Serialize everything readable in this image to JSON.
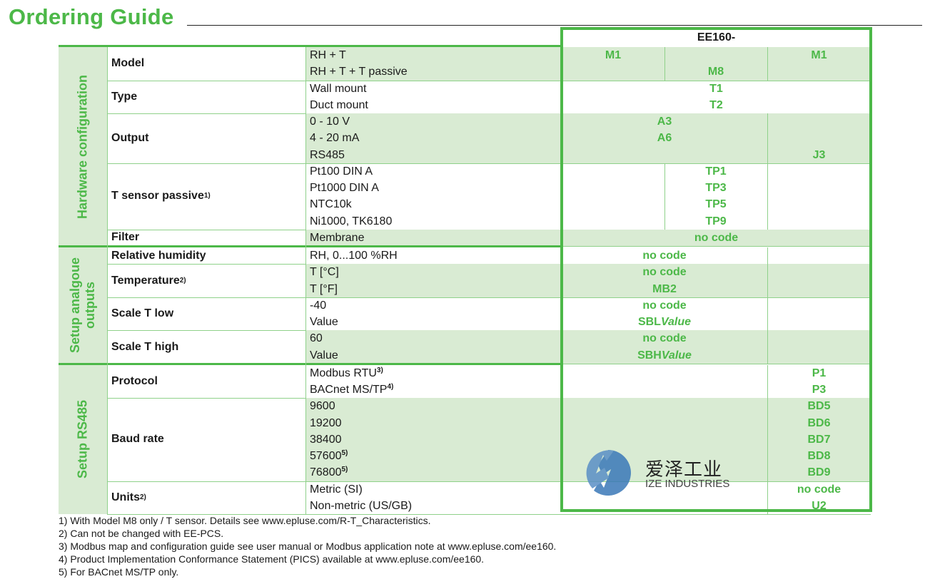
{
  "title": "Ordering Guide",
  "product_header": "EE160-",
  "colors": {
    "accent": "#4cb848",
    "row_fill": "#d9ebd3",
    "rule": "#8fd18a"
  },
  "sections": [
    {
      "label": "Hardware configuration",
      "rows": [
        0,
        1,
        2,
        3,
        4
      ]
    },
    {
      "label": "Setup analgoue\noutputs",
      "rows": [
        5,
        6,
        7,
        8
      ]
    },
    {
      "label": "Setup RS485",
      "rows": [
        9,
        10,
        11
      ]
    }
  ],
  "rows": [
    {
      "param": "Model",
      "sup": "",
      "green": true,
      "options": [
        {
          "t": "RH + T"
        },
        {
          "t": "RH + T + T passive"
        }
      ],
      "codes": [
        {
          "cols": [
            0,
            0
          ],
          "lines": [
            "M1",
            ""
          ]
        },
        {
          "cols": [
            1,
            1
          ],
          "lines": [
            "",
            "M8"
          ]
        },
        {
          "cols": [
            2,
            2
          ],
          "lines": [
            "M1",
            ""
          ]
        }
      ]
    },
    {
      "param": "Type",
      "sup": "",
      "green": false,
      "options": [
        {
          "t": "Wall mount"
        },
        {
          "t": "Duct mount"
        }
      ],
      "codes": [
        {
          "cols": [
            0,
            2
          ],
          "lines": [
            "T1",
            "T2"
          ]
        }
      ]
    },
    {
      "param": "Output",
      "sup": "",
      "green": true,
      "options": [
        {
          "t": "0 - 10 V"
        },
        {
          "t": "4 - 20 mA"
        },
        {
          "t": "RS485"
        }
      ],
      "codes": [
        {
          "cols": [
            0,
            1
          ],
          "lines": [
            "A3",
            "A6",
            ""
          ]
        },
        {
          "cols": [
            2,
            2
          ],
          "lines": [
            "",
            "",
            "J3"
          ]
        }
      ]
    },
    {
      "param": "T sensor passive",
      "sup": "1)",
      "green": false,
      "options": [
        {
          "t": "Pt100 DIN A"
        },
        {
          "t": "Pt1000 DIN A"
        },
        {
          "t": "NTC10k"
        },
        {
          "t": "Ni1000, TK6180"
        }
      ],
      "codes": [
        {
          "cols": [
            0,
            0
          ],
          "lines": []
        },
        {
          "cols": [
            1,
            1
          ],
          "lines": [
            "TP1",
            "TP3",
            "TP5",
            "TP9"
          ]
        },
        {
          "cols": [
            2,
            2
          ],
          "lines": []
        }
      ]
    },
    {
      "param": "Filter",
      "sup": "",
      "green": true,
      "options": [
        {
          "t": "Membrane"
        }
      ],
      "codes": [
        {
          "cols": [
            0,
            2
          ],
          "lines": [
            "no code"
          ]
        }
      ]
    },
    {
      "param": "Relative humidity",
      "sup": "",
      "green": false,
      "options": [
        {
          "t": "RH, 0...100 %RH"
        }
      ],
      "codes": [
        {
          "cols": [
            0,
            1
          ],
          "lines": [
            "no code"
          ]
        },
        {
          "cols": [
            2,
            2
          ],
          "lines": []
        }
      ]
    },
    {
      "param": "Temperature",
      "sup": "2)",
      "green": true,
      "options": [
        {
          "t": "T [°C]"
        },
        {
          "t": "T [°F]"
        }
      ],
      "codes": [
        {
          "cols": [
            0,
            1
          ],
          "lines": [
            "no code",
            "MB2"
          ]
        },
        {
          "cols": [
            2,
            2
          ],
          "lines": []
        }
      ]
    },
    {
      "param": "Scale T low",
      "sup": "",
      "green": false,
      "options": [
        {
          "t": "-40"
        },
        {
          "t": "Value"
        }
      ],
      "codes": [
        {
          "cols": [
            0,
            1
          ],
          "lines": [
            "no code",
            {
              "t": "SBL",
              "i": "Value"
            }
          ]
        },
        {
          "cols": [
            2,
            2
          ],
          "lines": []
        }
      ]
    },
    {
      "param": "Scale T high",
      "sup": "",
      "green": true,
      "options": [
        {
          "t": "60"
        },
        {
          "t": "Value"
        }
      ],
      "codes": [
        {
          "cols": [
            0,
            1
          ],
          "lines": [
            "no code",
            {
              "t": "SBH",
              "i": "Value"
            }
          ]
        },
        {
          "cols": [
            2,
            2
          ],
          "lines": []
        }
      ]
    },
    {
      "param": "Protocol",
      "sup": "",
      "green": false,
      "options": [
        {
          "t": "Modbus RTU",
          "s": "3)"
        },
        {
          "t": "BACnet MS/TP",
          "s": "4)"
        }
      ],
      "codes": [
        {
          "cols": [
            0,
            1
          ],
          "lines": []
        },
        {
          "cols": [
            2,
            2
          ],
          "lines": [
            "P1",
            "P3"
          ]
        }
      ]
    },
    {
      "param": "Baud rate",
      "sup": "",
      "green": true,
      "options": [
        {
          "t": "9600"
        },
        {
          "t": "19200"
        },
        {
          "t": "38400"
        },
        {
          "t": "57600",
          "s": "5)"
        },
        {
          "t": "76800",
          "s": "5)"
        }
      ],
      "codes": [
        {
          "cols": [
            0,
            1
          ],
          "lines": []
        },
        {
          "cols": [
            2,
            2
          ],
          "lines": [
            "BD5",
            "BD6",
            "BD7",
            "BD8",
            "BD9"
          ]
        }
      ]
    },
    {
      "param": "Units",
      "sup": "2)",
      "green": false,
      "options": [
        {
          "t": "Metric (SI)"
        },
        {
          "t": "Non-metric (US/GB)"
        }
      ],
      "codes": [
        {
          "cols": [
            0,
            1
          ],
          "lines": []
        },
        {
          "cols": [
            2,
            2
          ],
          "lines": [
            "no code",
            "U2"
          ]
        }
      ]
    }
  ],
  "footnotes": [
    "1)  With Model M8 only / T sensor. Details see www.epluse.com/R-T_Characteristics.",
    "2)  Can not be changed with EE-PCS.",
    "3)  Modbus map and configuration guide see user manual or Modbus application note at www.epluse.com/ee160.",
    "4)  Product Implementation Conformance Statement (PICS) available at www.epluse.com/ee160.",
    "5)  For BACnet MS/TP only."
  ],
  "watermark": {
    "name_cn": "爱泽工业",
    "name_en": "IZE INDUSTRIES",
    "logo_color": "#3a78b8"
  }
}
